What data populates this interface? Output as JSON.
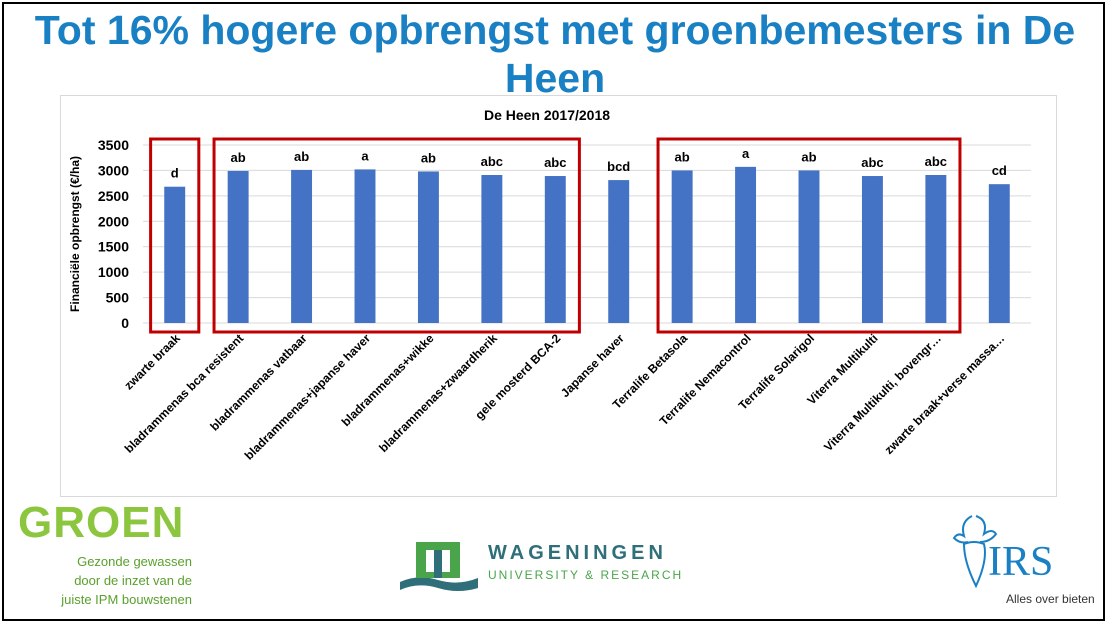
{
  "slide": {
    "title": "Tot 16% hogere opbrengst met groenbemesters in De Heen"
  },
  "chart_data": {
    "type": "bar",
    "title": "De Heen 2017/2018",
    "ylabel": "Financiële opbrengst (€/ha)",
    "xlabel": "",
    "ylim": [
      0,
      3500
    ],
    "yticks": [
      0,
      500,
      1000,
      1500,
      2000,
      2500,
      3000,
      3500
    ],
    "grid": true,
    "bar_color": "#4472c4",
    "categories": [
      "zwarte braak",
      "bladrammenas bca resistent",
      "bladrammenas vatbaar",
      "bladrammenas+japanse haver",
      "bladrammenas+wikke",
      "bladrammenas+zwaardherik",
      "gele mosterd BCA-2",
      "Japanse haver",
      "Terralife Betasola",
      "Terralife Nemacontrol",
      "Terralife Solarigol",
      "Viterra Multikulti",
      "Viterra Multikulti, bovengr…",
      "zwarte braak+verse massa…"
    ],
    "values": [
      2680,
      2990,
      3010,
      3020,
      2980,
      2910,
      2890,
      2810,
      3000,
      3070,
      3000,
      2890,
      2910,
      2730
    ],
    "annotations": [
      "d",
      "ab",
      "ab",
      "a",
      "ab",
      "abc",
      "abc",
      "bcd",
      "ab",
      "a",
      "ab",
      "abc",
      "abc",
      "cd"
    ],
    "highlight_groups": [
      [
        0,
        0
      ],
      [
        1,
        6
      ],
      [
        8,
        12
      ]
    ],
    "highlight_color": "#c00000"
  },
  "logos": {
    "groen": {
      "name": "GROEN",
      "tagline": [
        "Gezonde gewassen",
        "door de inzet van de",
        "juiste IPM bouwstenen"
      ]
    },
    "wur": {
      "name": "WAGENINGEN",
      "subtitle": "UNIVERSITY & RESEARCH"
    },
    "irs": {
      "name": "IRS",
      "tagline": "Alles over bieten"
    }
  }
}
